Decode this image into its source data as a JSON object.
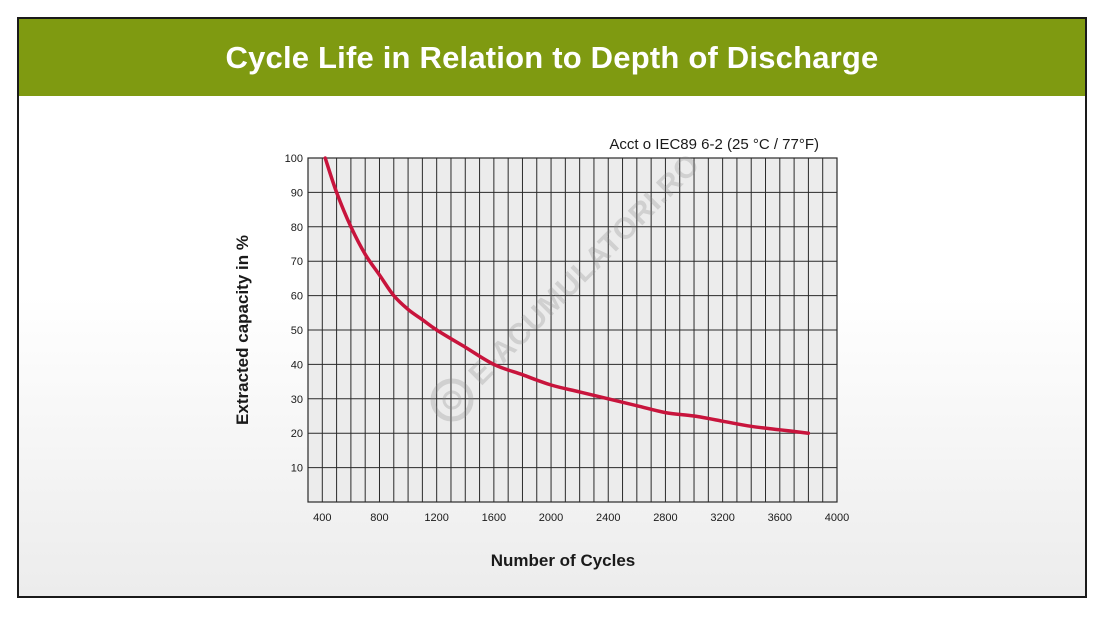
{
  "banner": {
    "title": "Cycle Life in Relation to Depth of Discharge"
  },
  "watermark": {
    "text": "E-ACUMULATORI.RO"
  },
  "colors": {
    "banner": "#7f9a11",
    "curve": "#c8143c",
    "grid": "#2a2a2a",
    "plot_bg": "#ececec"
  },
  "chart_data": {
    "type": "line",
    "title": "",
    "annotation": "Acct o IEC89 6-2 (25 °C / 77°F)",
    "xlabel": "Number of Cycles",
    "ylabel": "Extracted capacity in %",
    "xlim": [
      300,
      4000
    ],
    "ylim": [
      0,
      100
    ],
    "x_tick_labels": [
      "400",
      "800",
      "1200",
      "1600",
      "2000",
      "2400",
      "2800",
      "3200",
      "3600",
      "4000"
    ],
    "y_tick_labels": [
      "10",
      "20",
      "30",
      "40",
      "50",
      "60",
      "70",
      "80",
      "90",
      "100"
    ],
    "grid": true,
    "legend": "none",
    "series": [
      {
        "name": "",
        "x": [
          420,
          500,
          600,
          700,
          800,
          900,
          1000,
          1100,
          1200,
          1400,
          1600,
          1800,
          2000,
          2200,
          2400,
          2600,
          2800,
          3000,
          3200,
          3400,
          3600,
          3800
        ],
        "y": [
          100,
          90,
          80,
          72,
          66,
          60,
          56,
          53,
          50,
          45,
          40,
          37,
          34,
          32,
          30,
          28,
          26,
          25,
          23.5,
          22,
          21,
          20
        ]
      }
    ]
  }
}
